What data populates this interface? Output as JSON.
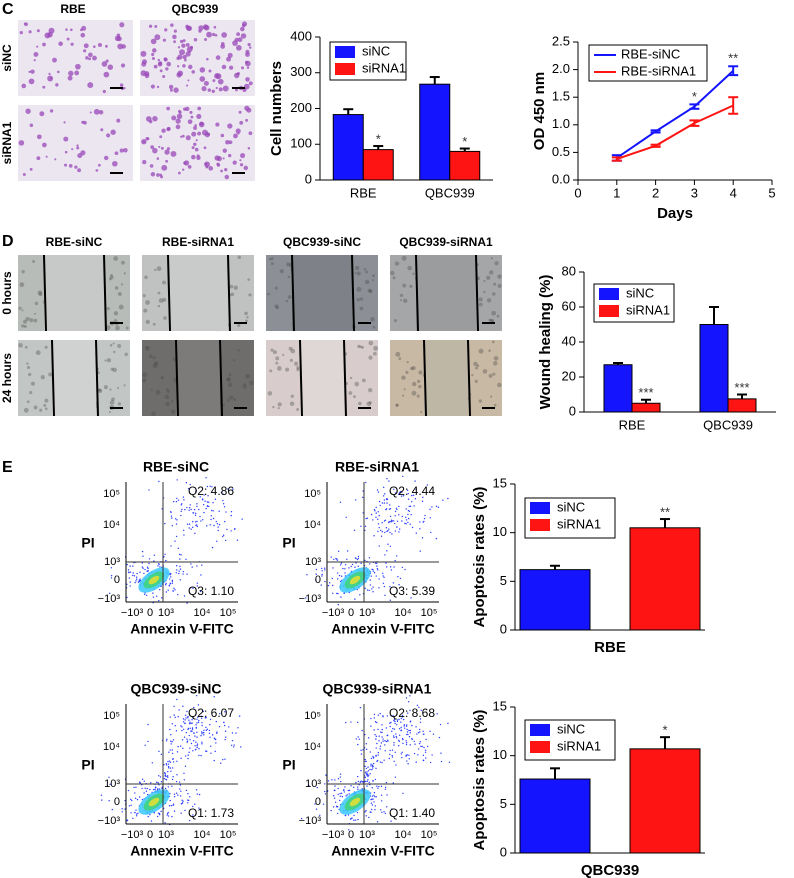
{
  "panel_labels": [
    "C",
    "D",
    "E"
  ],
  "migration_images": {
    "columns": [
      "RBE",
      "QBC939"
    ],
    "rows": [
      "siNC",
      "siRNA1"
    ]
  },
  "wound_images": {
    "columns": [
      "RBE-siNC",
      "RBE-siRNA1",
      "QBC939-siNC",
      "QBC939-siRNA1"
    ],
    "rows": [
      "0 hours",
      "24 hours"
    ]
  },
  "flow_cytometry": {
    "x_label": "Annexin V-FITC",
    "y_label": "PI",
    "x_ticks": [
      "−10³",
      "0",
      "10³",
      "10⁴",
      "10⁵"
    ],
    "y_ticks": [
      "10⁵",
      "10⁴",
      "10³",
      "0",
      "−10³"
    ],
    "plots": [
      {
        "title": "RBE-siNC",
        "upper_right": "Q2: 4.86",
        "lower_right": "Q3: 1.10"
      },
      {
        "title": "RBE-siRNA1",
        "upper_right": "Q2: 4.44",
        "lower_right": "Q3: 5.39"
      },
      {
        "title": "QBC939-siNC",
        "upper_right": "Q2: 6.07",
        "lower_right": "Q1: 1.73"
      },
      {
        "title": "QBC939-siRNA1",
        "upper_right": "Q2: 8.68",
        "lower_right": "Q1: 1.40"
      }
    ]
  },
  "chart_data": [
    {
      "type": "bar",
      "y_label": "Cell numbers",
      "categories": [
        "RBE",
        "QBC939"
      ],
      "series": [
        {
          "name": "siNC",
          "color": "#1414ff",
          "values": [
            183,
            268
          ],
          "errors": [
            15,
            20
          ]
        },
        {
          "name": "siRNA1",
          "color": "#ff1414",
          "values": [
            85,
            80
          ],
          "errors": [
            10,
            8
          ],
          "significance": [
            "*",
            "*"
          ]
        }
      ],
      "ylim": [
        0,
        400
      ],
      "yticks": [
        0,
        100,
        200,
        300,
        400
      ]
    },
    {
      "type": "line",
      "x_label": "Days",
      "y_label": "OD 450 nm",
      "x": [
        1,
        2,
        3,
        4
      ],
      "series": [
        {
          "name": "RBE-siNC",
          "color": "#1414ff",
          "values": [
            0.4,
            0.88,
            1.33,
            1.98
          ],
          "errors": [
            0.05,
            0.02,
            0.04,
            0.08
          ],
          "significance": [
            null,
            null,
            "*",
            "**"
          ]
        },
        {
          "name": "RBE-siRNA1",
          "color": "#ff1414",
          "values": [
            0.38,
            0.62,
            1.03,
            1.35
          ],
          "errors": [
            0.03,
            0.02,
            0.05,
            0.15
          ]
        }
      ],
      "xlim": [
        0,
        5
      ],
      "xticks": [
        0,
        1,
        2,
        3,
        4,
        5
      ],
      "ylim": [
        0,
        2.5
      ],
      "yticks": [
        {
          "value": 0,
          "label": "0.0"
        },
        0.5,
        {
          "value": 1,
          "label": "1.0"
        },
        1.5,
        {
          "value": 2,
          "label": "2.0"
        },
        2.5
      ]
    },
    {
      "type": "bar",
      "y_label": "Wound healing (%)",
      "categories": [
        "RBE",
        "QBC939"
      ],
      "series": [
        {
          "name": "siNC",
          "color": "#1414ff",
          "values": [
            27,
            50
          ],
          "errors": [
            1,
            10
          ]
        },
        {
          "name": "siRNA1",
          "color": "#ff1414",
          "values": [
            5,
            7.5
          ],
          "errors": [
            2,
            2.5
          ],
          "significance": [
            "***",
            "***"
          ]
        }
      ],
      "ylim": [
        0,
        80
      ],
      "yticks": [
        0,
        20,
        40,
        60,
        80
      ]
    },
    {
      "type": "bar",
      "y_label": "Apoptosis rates (%)",
      "x_label": "RBE",
      "categories": [
        null
      ],
      "series": [
        {
          "name": "siNC",
          "color": "#1414ff",
          "values": [
            6.2
          ],
          "errors": [
            0.4
          ]
        },
        {
          "name": "siRNA1",
          "color": "#ff1414",
          "values": [
            10.5
          ],
          "errors": [
            0.9
          ],
          "significance": [
            "**"
          ]
        }
      ],
      "ylim": [
        0,
        15
      ],
      "yticks": [
        0,
        5,
        10,
        15
      ]
    },
    {
      "type": "bar",
      "y_label": "Apoptosis rates (%)",
      "x_label": "QBC939",
      "categories": [
        null
      ],
      "series": [
        {
          "name": "siNC",
          "color": "#1414ff",
          "values": [
            7.6
          ],
          "errors": [
            1.1
          ]
        },
        {
          "name": "siRNA1",
          "color": "#ff1414",
          "values": [
            10.7
          ],
          "errors": [
            1.2
          ],
          "significance": [
            "*"
          ]
        }
      ],
      "ylim": [
        0,
        15
      ],
      "yticks": [
        0,
        5,
        10,
        15
      ]
    }
  ]
}
